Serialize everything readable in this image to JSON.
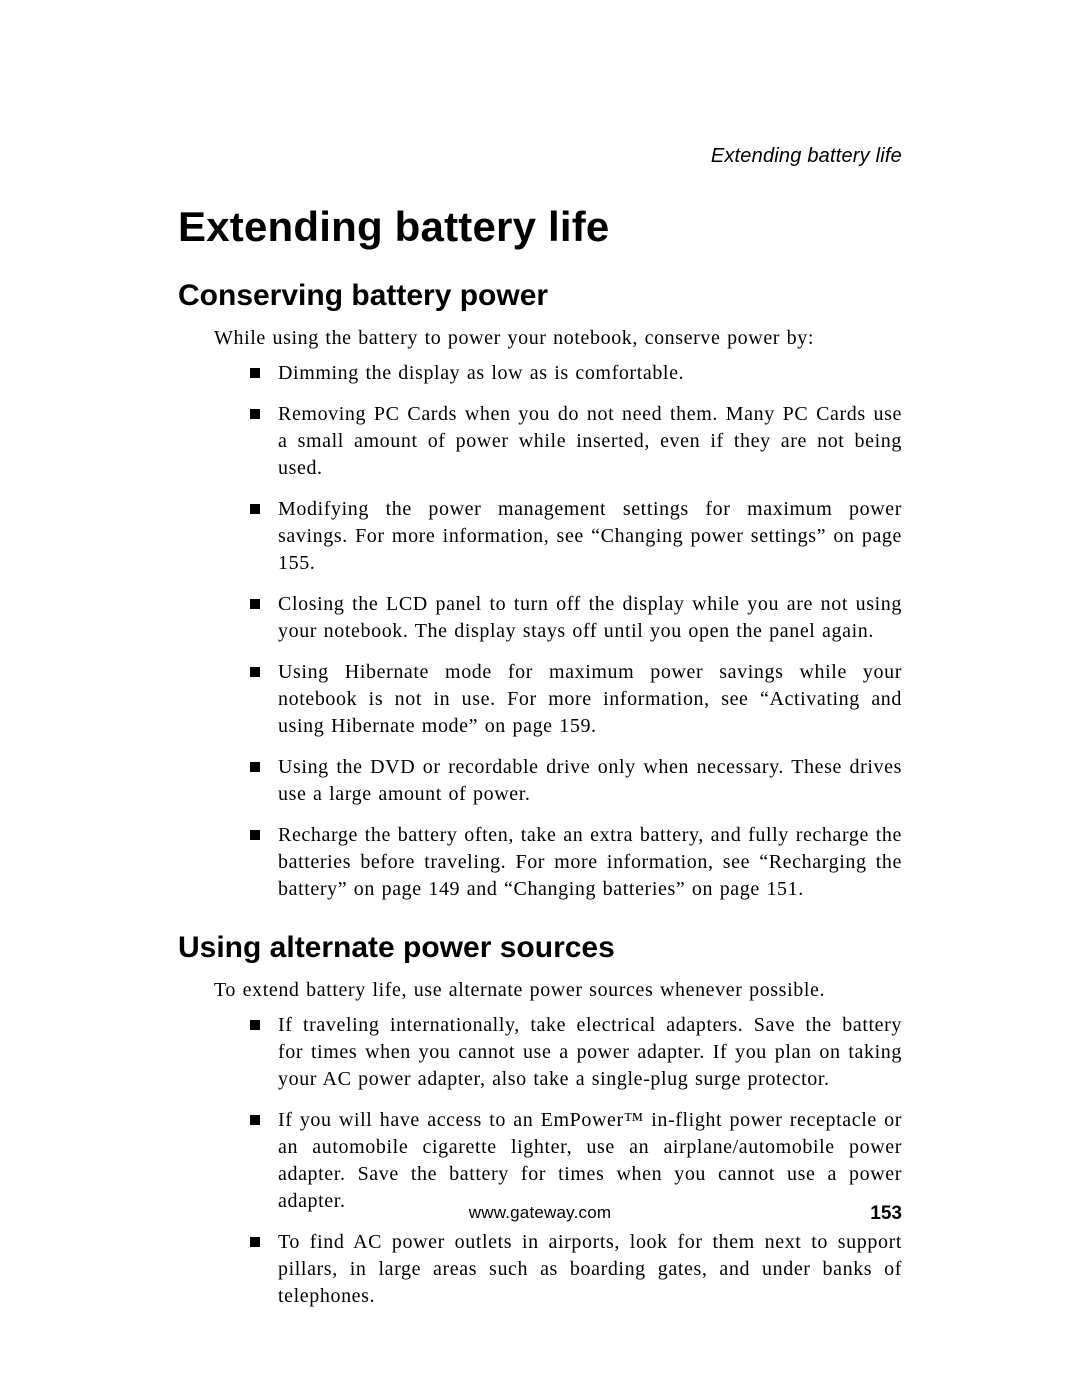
{
  "colors": {
    "background": "#ffffff",
    "text": "#000000"
  },
  "typography": {
    "body_family": "Times New Roman",
    "heading_family": "Arial",
    "title_size_pt": 32,
    "subtitle_size_pt": 22,
    "body_size_pt": 15
  },
  "running_head": "Extending battery life",
  "title": "Extending battery life",
  "sections": [
    {
      "heading": "Conserving battery power",
      "intro": "While using the battery to power your notebook, conserve power by:",
      "items": [
        "Dimming the display as low as is comfortable.",
        "Removing PC Cards when you do not need them. Many PC Cards use a small amount of power while inserted, even if they are not being used.",
        "Modifying the power management settings for maximum power savings. For more information, see “Changing power settings” on page 155.",
        "Closing the LCD panel to turn off the display while you are not using your notebook. The display stays off until you open the panel again.",
        "Using Hibernate mode for maximum power savings while your notebook is not in use. For more information, see “Activating and using Hibernate mode” on page 159.",
        "Using the DVD or recordable drive only when necessary. These drives use a large amount of power.",
        "Recharge the battery often, take an extra battery, and fully recharge the batteries before traveling. For more information, see “Recharging the battery” on page 149 and “Changing batteries” on page 151."
      ]
    },
    {
      "heading": "Using alternate power sources",
      "intro": "To extend battery life, use alternate power sources whenever possible.",
      "items": [
        "If traveling internationally, take electrical adapters. Save the battery for times when you cannot use a power adapter. If you plan on taking your AC power adapter, also take a single-plug surge protector.",
        "If you will have access to an EmPower™ in-flight power receptacle or an automobile cigarette lighter, use an airplane/automobile power adapter. Save the battery for times when you cannot use a power adapter.",
        "To find AC power outlets in airports, look for them next to support pillars, in large areas such as boarding gates, and under banks of telephones."
      ]
    }
  ],
  "footer_url": "www.gateway.com",
  "page_number": "153"
}
